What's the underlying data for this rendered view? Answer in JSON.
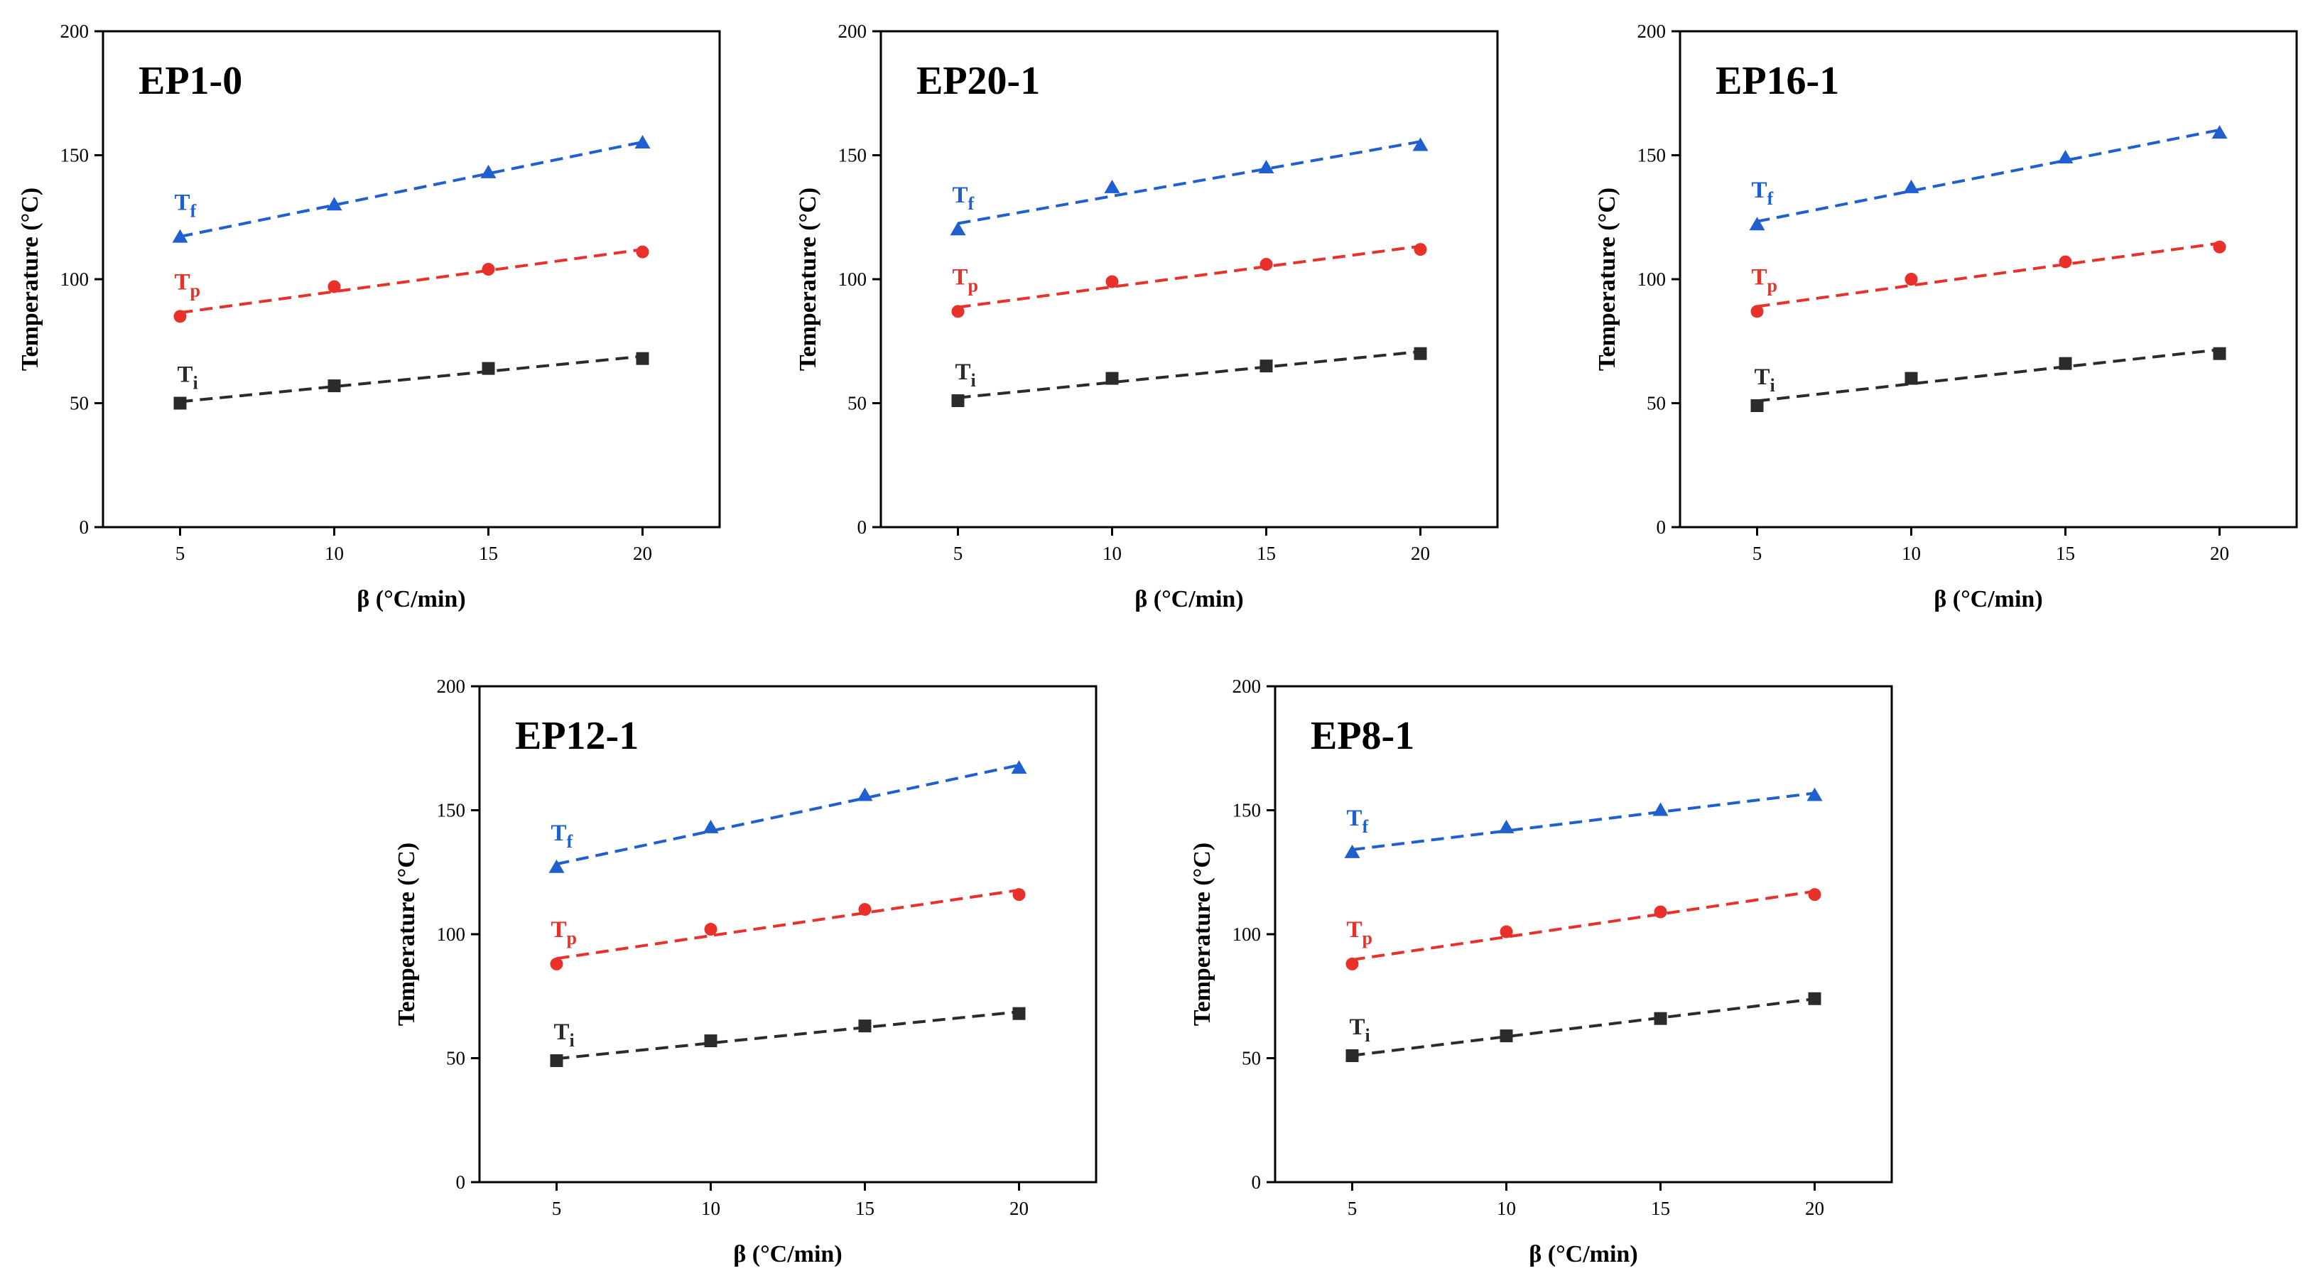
{
  "xlabel": "β (°C/min)",
  "ylabel": "Temperature (°C)",
  "colors": {
    "Tf": "#1f5fcf",
    "Tp": "#e8312a",
    "Ti": "#2b2b2b"
  },
  "chart_data": [
    {
      "type": "scatter",
      "title": "EP1-0",
      "xlabel": "β (°C/min)",
      "ylabel": "Temperature (°C)",
      "xticks": [
        5,
        10,
        15,
        20
      ],
      "yticks": [
        0,
        50,
        100,
        150,
        200
      ],
      "ylim": [
        0,
        200
      ],
      "fit_lines": true,
      "x": [
        5,
        10,
        15,
        20
      ],
      "series": [
        {
          "name": "Tf",
          "marker": "triangle",
          "values": [
            117,
            130,
            143,
            155
          ]
        },
        {
          "name": "Tp",
          "marker": "circle",
          "values": [
            85,
            97,
            104,
            111
          ]
        },
        {
          "name": "Ti",
          "marker": "square",
          "values": [
            50,
            57,
            64,
            68
          ]
        }
      ]
    },
    {
      "type": "scatter",
      "title": "EP20-1",
      "xlabel": "β (°C/min)",
      "ylabel": "Temperature (°C)",
      "xticks": [
        5,
        10,
        15,
        20
      ],
      "yticks": [
        0,
        50,
        100,
        150,
        200
      ],
      "ylim": [
        0,
        200
      ],
      "fit_lines": true,
      "x": [
        5,
        10,
        15,
        20
      ],
      "series": [
        {
          "name": "Tf",
          "marker": "triangle",
          "values": [
            120,
            137,
            145,
            154
          ]
        },
        {
          "name": "Tp",
          "marker": "circle",
          "values": [
            87,
            99,
            106,
            112
          ]
        },
        {
          "name": "Ti",
          "marker": "square",
          "values": [
            51,
            60,
            65,
            70
          ]
        }
      ]
    },
    {
      "type": "scatter",
      "title": "EP16-1",
      "xlabel": "β (°C/min)",
      "ylabel": "Temperature (°C)",
      "xticks": [
        5,
        10,
        15,
        20
      ],
      "yticks": [
        0,
        50,
        100,
        150,
        200
      ],
      "ylim": [
        0,
        200
      ],
      "fit_lines": true,
      "x": [
        5,
        10,
        15,
        20
      ],
      "series": [
        {
          "name": "Tf",
          "marker": "triangle",
          "values": [
            122,
            137,
            149,
            159
          ]
        },
        {
          "name": "Tp",
          "marker": "circle",
          "values": [
            87,
            100,
            107,
            113
          ]
        },
        {
          "name": "Ti",
          "marker": "square",
          "values": [
            49,
            60,
            66,
            70
          ]
        }
      ]
    },
    {
      "type": "scatter",
      "title": "EP12-1",
      "xlabel": "β (°C/min)",
      "ylabel": "Temperature (°C)",
      "xticks": [
        5,
        10,
        15,
        20
      ],
      "yticks": [
        0,
        50,
        100,
        150,
        200
      ],
      "ylim": [
        0,
        200
      ],
      "fit_lines": true,
      "x": [
        5,
        10,
        15,
        20
      ],
      "series": [
        {
          "name": "Tf",
          "marker": "triangle",
          "values": [
            127,
            143,
            156,
            167
          ]
        },
        {
          "name": "Tp",
          "marker": "circle",
          "values": [
            88,
            102,
            110,
            116
          ]
        },
        {
          "name": "Ti",
          "marker": "square",
          "values": [
            49,
            57,
            63,
            68
          ]
        }
      ]
    },
    {
      "type": "scatter",
      "title": "EP8-1",
      "xlabel": "β (°C/min)",
      "ylabel": "Temperature (°C)",
      "xticks": [
        5,
        10,
        15,
        20
      ],
      "yticks": [
        0,
        50,
        100,
        150,
        200
      ],
      "ylim": [
        0,
        200
      ],
      "fit_lines": true,
      "x": [
        5,
        10,
        15,
        20
      ],
      "series": [
        {
          "name": "Tf",
          "marker": "triangle",
          "values": [
            133,
            143,
            150,
            156
          ]
        },
        {
          "name": "Tp",
          "marker": "circle",
          "values": [
            88,
            101,
            109,
            116
          ]
        },
        {
          "name": "Ti",
          "marker": "square",
          "values": [
            51,
            59,
            66,
            74
          ]
        }
      ]
    }
  ]
}
